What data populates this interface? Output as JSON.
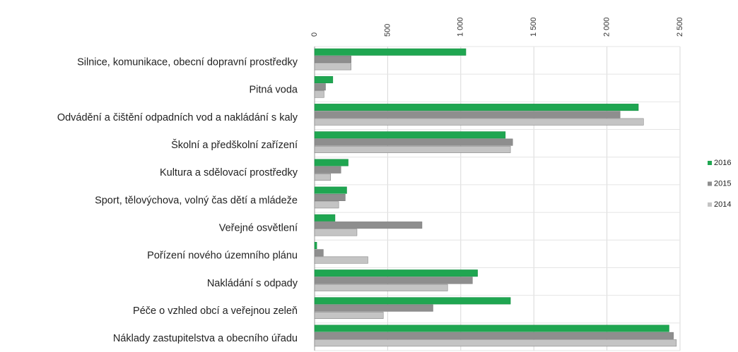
{
  "chart_data": {
    "type": "bar",
    "orientation": "horizontal",
    "categories": [
      "Silnice, komunikace, obecní dopravní prostředky",
      "Pitná voda",
      "Odvádění a čištění odpadních vod a nakládání s kaly",
      "Školní a předškolní zařízení",
      "Kultura a sdělovací prostředky",
      "Sport, tělovýchova, volný čas dětí a mládeže",
      "Veřejné osvětlení",
      "Pořízení nového územního plánu",
      "Nakládání s odpady",
      "Péče o vzhled obcí a veřejnou zeleň",
      "Náklady zastupitelstva a obecního úřadu"
    ],
    "series": [
      {
        "name": "2016",
        "color": "#1fa651",
        "values": [
          1035,
          125,
          2215,
          1305,
          230,
          220,
          140,
          15,
          1115,
          1340,
          2425
        ]
      },
      {
        "name": "2015",
        "color": "#8e8e8e",
        "values": [
          250,
          75,
          2090,
          1355,
          180,
          210,
          735,
          60,
          1080,
          810,
          2455
        ]
      },
      {
        "name": "2014",
        "color": "#c4c4c4",
        "values": [
          250,
          65,
          2250,
          1340,
          110,
          165,
          290,
          365,
          910,
          470,
          2475
        ]
      }
    ],
    "xlim": [
      0,
      2500
    ],
    "xticks": [
      0,
      500,
      {
        "value": 1000,
        "label": "1 000"
      },
      {
        "value": 1500,
        "label": "1 500"
      },
      {
        "value": 2000,
        "label": "2 000"
      },
      {
        "value": 2500,
        "label": "2 500"
      }
    ],
    "grid": true,
    "legend": "right"
  }
}
